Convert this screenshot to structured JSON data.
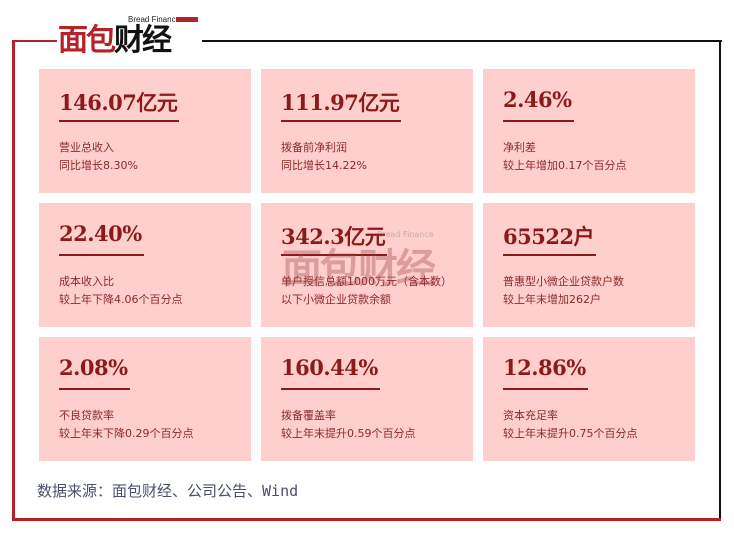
{
  "logo": {
    "english": "Bread Finance",
    "chinese": "面包财经"
  },
  "colors": {
    "card_bg": "#fecfcd",
    "value_text": "#8b1a1a",
    "frame_red": "#b5222a",
    "frame_dark": "#111111"
  },
  "cards": [
    {
      "value": "146.07亿元",
      "line1": "营业总收入",
      "line2": "同比增长8.30%"
    },
    {
      "value": "111.97亿元",
      "line1": "拨备前净利润",
      "line2": "同比增长14.22%"
    },
    {
      "value": "2.46%",
      "line1": "净利差",
      "line2": "较上年增加0.17个百分点"
    },
    {
      "value": "22.40%",
      "line1": "成本收入比",
      "line2": "较上年下降4.06个百分点"
    },
    {
      "value": "342.3亿元",
      "line1": "单户授信总额1000万元（含本数）以下小微企业贷款余额",
      "line2": ""
    },
    {
      "value": "65522户",
      "line1": "普惠型小微企业贷款户数",
      "line2": "较上年末增加262户"
    },
    {
      "value": "2.08%",
      "line1": "不良贷款率",
      "line2": "较上年末下降0.29个百分点"
    },
    {
      "value": "160.44%",
      "line1": "拨备覆盖率",
      "line2": "较上年末提升0.59个百分点"
    },
    {
      "value": "12.86%",
      "line1": "资本充足率",
      "line2": "较上年末提升0.75个百分点"
    }
  ],
  "source": "数据来源：面包财经、公司公告、Wind"
}
